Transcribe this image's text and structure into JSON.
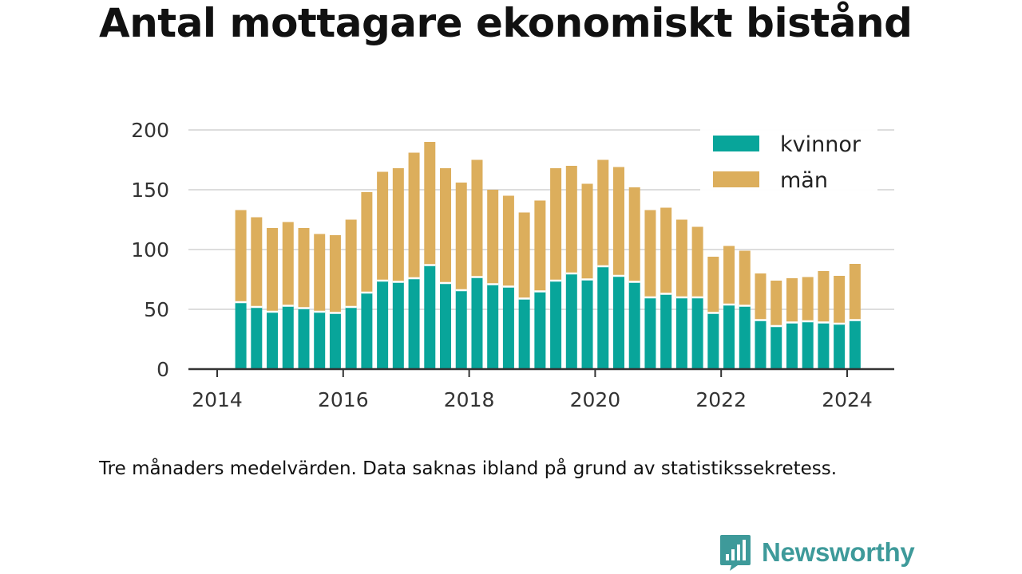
{
  "title": "Antal mottagare ekonomiskt bistånd",
  "caption": "Tre månaders medelvärden. Data saknas ibland på grund av statistikssekretess.",
  "brand": {
    "name": "Newsworthy",
    "color": "#3e9a9a"
  },
  "chart_data": {
    "type": "bar",
    "stacked": true,
    "title": "Antal mottagare ekonomiskt bistånd",
    "xlabel": "",
    "ylabel": "",
    "ylim": [
      0,
      200
    ],
    "yticks": [
      0,
      50,
      100,
      150,
      200
    ],
    "xticks": [
      "2014",
      "2016",
      "2018",
      "2020",
      "2022",
      "2024"
    ],
    "xlim": [
      2014,
      2025
    ],
    "grid": true,
    "legend": "top-right",
    "x": [
      2014.375,
      2014.625,
      2014.875,
      2015.125,
      2015.375,
      2015.625,
      2015.875,
      2016.125,
      2016.375,
      2016.625,
      2016.875,
      2017.125,
      2017.375,
      2017.625,
      2017.875,
      2018.125,
      2018.375,
      2018.625,
      2018.875,
      2019.125,
      2019.375,
      2019.625,
      2019.875,
      2020.125,
      2020.375,
      2020.625,
      2020.875,
      2021.125,
      2021.375,
      2021.625,
      2021.875,
      2022.125,
      2022.375,
      2022.625,
      2022.875,
      2023.125,
      2023.375,
      2023.625,
      2023.875,
      2024.125
    ],
    "series": [
      {
        "name": "kvinnor",
        "color": "#08a59a",
        "values": [
          56,
          52,
          48,
          53,
          51,
          48,
          47,
          52,
          64,
          74,
          73,
          76,
          87,
          72,
          66,
          77,
          71,
          69,
          59,
          65,
          74,
          80,
          75,
          86,
          78,
          73,
          60,
          63,
          60,
          60,
          47,
          54,
          53,
          41,
          36,
          39,
          40,
          39,
          38,
          41
        ]
      },
      {
        "name": "män",
        "color": "#dcae5c",
        "values": [
          77,
          75,
          70,
          70,
          67,
          65,
          65,
          73,
          84,
          91,
          95,
          105,
          103,
          96,
          90,
          98,
          79,
          76,
          72,
          76,
          94,
          90,
          80,
          89,
          91,
          79,
          73,
          72,
          65,
          59,
          47,
          49,
          46,
          39,
          38,
          37,
          37,
          43,
          40,
          47
        ]
      }
    ]
  }
}
